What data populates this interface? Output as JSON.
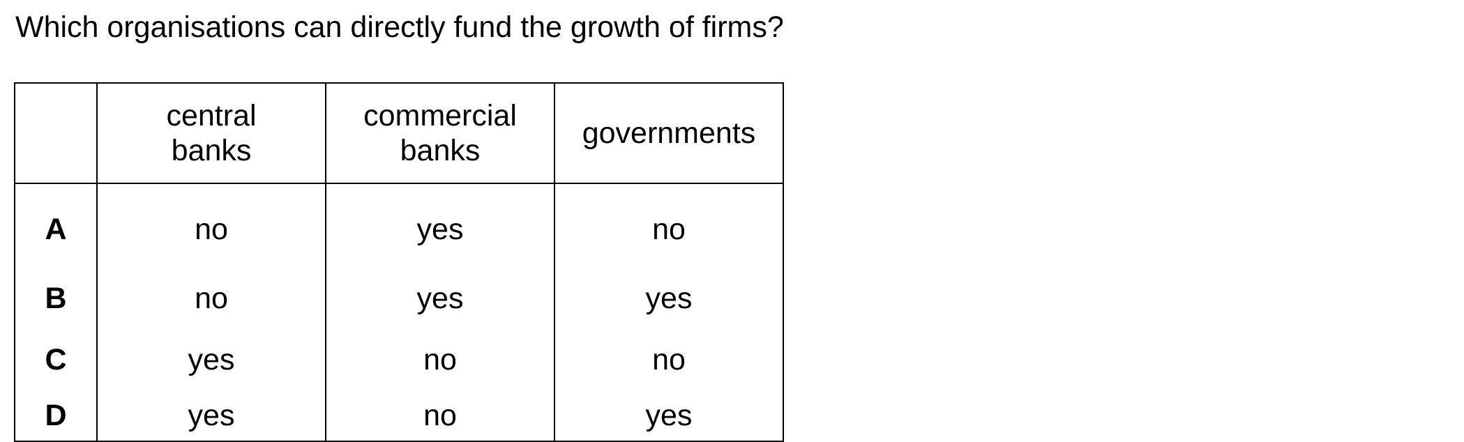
{
  "question": "Which organisations can directly fund the growth of firms?",
  "table": {
    "headers": [
      {
        "line1": "central",
        "line2": "banks"
      },
      {
        "line1": "commercial",
        "line2": "banks"
      },
      {
        "line1": "governments",
        "line2": ""
      }
    ],
    "rows": [
      {
        "label": "A",
        "cells": [
          "no",
          "yes",
          "no"
        ]
      },
      {
        "label": "B",
        "cells": [
          "no",
          "yes",
          "yes"
        ]
      },
      {
        "label": "C",
        "cells": [
          "yes",
          "no",
          "no"
        ]
      },
      {
        "label": "D",
        "cells": [
          "yes",
          "no",
          "yes"
        ]
      }
    ]
  }
}
